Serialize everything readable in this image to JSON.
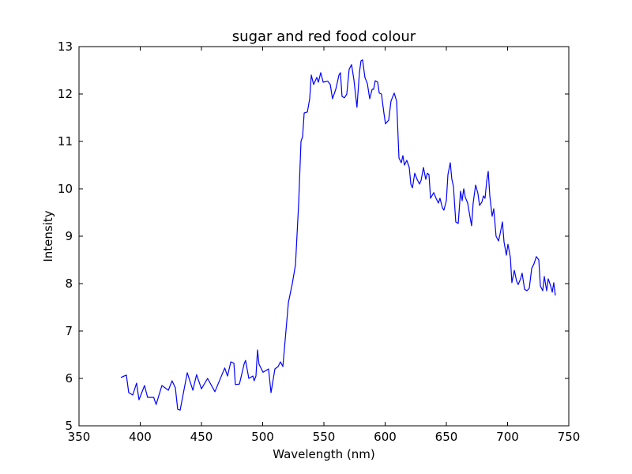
{
  "chart_data": {
    "type": "line",
    "title": "sugar and red food colour",
    "xlabel": "Wavelength (nm)",
    "ylabel": "Intensity",
    "color": "#0000ff",
    "x": [
      384.2,
      388.7,
      390.6,
      393.9,
      397.0,
      399.0,
      403.5,
      406.0,
      411.0,
      413.0,
      417.7,
      423.0,
      426.0,
      428.7,
      430.6,
      432.6,
      438.4,
      443.0,
      446.0,
      450.0,
      455.0,
      461.0,
      469.0,
      471.3,
      474.0,
      476.5,
      477.7,
      481.0,
      484.8,
      486.0,
      488.7,
      492.0,
      493.0,
      494.5,
      495.8,
      497.0,
      500.3,
      504.8,
      506.8,
      510.0,
      512.6,
      514.5,
      516.5,
      519.0,
      521.0,
      524.2,
      526.8,
      529.4,
      531.3,
      532.6,
      533.9,
      536.5,
      538.4,
      539.7,
      541.6,
      544.2,
      545.5,
      547.4,
      549.4,
      553.2,
      555.2,
      557.0,
      559.7,
      562.3,
      563.5,
      564.8,
      566.8,
      568.7,
      570.6,
      572.6,
      574.5,
      577.0,
      579.0,
      580.3,
      581.6,
      583.5,
      585.5,
      587.4,
      589.4,
      590.6,
      591.9,
      593.9,
      595.2,
      597.0,
      599.0,
      600.3,
      602.9,
      604.8,
      607.4,
      609.4,
      611.3,
      613.2,
      614.5,
      615.8,
      617.7,
      619.7,
      621.0,
      622.3,
      624.2,
      626.1,
      628.1,
      629.4,
      631.3,
      633.2,
      634.5,
      635.8,
      637.1,
      639.7,
      641.6,
      643.5,
      644.8,
      646.8,
      648.0,
      650.0,
      651.3,
      653.2,
      654.5,
      655.8,
      657.7,
      659.7,
      661.6,
      662.9,
      664.2,
      665.5,
      667.4,
      668.7,
      670.6,
      671.9,
      673.9,
      675.8,
      677.1,
      679.0,
      680.3,
      681.6,
      682.9,
      684.2,
      685.5,
      687.4,
      688.7,
      690.6,
      692.6,
      693.9,
      695.8,
      697.1,
      699.0,
      700.3,
      702.3,
      703.5,
      705.5,
      707.4,
      708.7,
      710.6,
      711.9,
      713.9,
      715.8,
      717.7,
      719.7,
      721.6,
      723.5,
      725.5,
      726.8,
      728.7,
      730.0,
      731.9,
      733.2,
      735.2,
      736.5,
      737.7,
      739.0
    ],
    "values": [
      6.02,
      6.07,
      5.7,
      5.65,
      5.9,
      5.55,
      5.85,
      5.6,
      5.6,
      5.45,
      5.85,
      5.75,
      5.95,
      5.8,
      5.35,
      5.33,
      6.12,
      5.75,
      6.08,
      5.78,
      6.0,
      5.72,
      6.22,
      6.05,
      6.35,
      6.32,
      5.87,
      5.88,
      6.3,
      6.38,
      6.0,
      6.05,
      5.95,
      6.05,
      6.6,
      6.3,
      6.13,
      6.2,
      5.7,
      6.2,
      6.25,
      6.35,
      6.25,
      7.0,
      7.6,
      8.0,
      8.4,
      9.7,
      11.0,
      11.1,
      11.6,
      11.62,
      11.9,
      12.4,
      12.2,
      12.35,
      12.25,
      12.45,
      12.25,
      12.27,
      12.2,
      11.9,
      12.1,
      12.4,
      12.45,
      11.95,
      11.92,
      12.0,
      12.52,
      12.62,
      12.3,
      11.72,
      12.45,
      12.7,
      12.72,
      12.35,
      12.22,
      11.9,
      12.1,
      12.1,
      12.28,
      12.25,
      12.02,
      12.0,
      11.6,
      11.37,
      11.45,
      11.85,
      12.02,
      11.85,
      10.65,
      10.55,
      10.7,
      10.5,
      10.6,
      10.45,
      10.1,
      10.02,
      10.33,
      10.2,
      10.1,
      10.18,
      10.45,
      10.2,
      10.33,
      10.3,
      9.8,
      9.92,
      9.8,
      9.7,
      9.8,
      9.6,
      9.55,
      9.75,
      10.3,
      10.55,
      10.2,
      10.05,
      9.3,
      9.27,
      9.95,
      9.75,
      10.0,
      9.82,
      9.7,
      9.5,
      9.22,
      9.7,
      10.08,
      9.9,
      9.65,
      9.72,
      9.85,
      9.8,
      10.15,
      10.37,
      9.85,
      9.42,
      9.58,
      9.0,
      8.9,
      9.05,
      9.3,
      8.88,
      8.6,
      8.83,
      8.55,
      8.02,
      8.28,
      8.05,
      7.98,
      8.1,
      8.22,
      7.88,
      7.85,
      7.9,
      8.32,
      8.42,
      8.57,
      8.5,
      7.95,
      7.85,
      8.15,
      7.85,
      8.1,
      7.95,
      7.82,
      8.02,
      7.75
    ],
    "xlim": [
      350,
      750
    ],
    "ylim": [
      5,
      13
    ],
    "xticks": [
      350,
      400,
      450,
      500,
      550,
      600,
      650,
      700,
      750
    ],
    "yticks": [
      5,
      6,
      7,
      8,
      9,
      10,
      11,
      12,
      13
    ],
    "grid": false
  }
}
